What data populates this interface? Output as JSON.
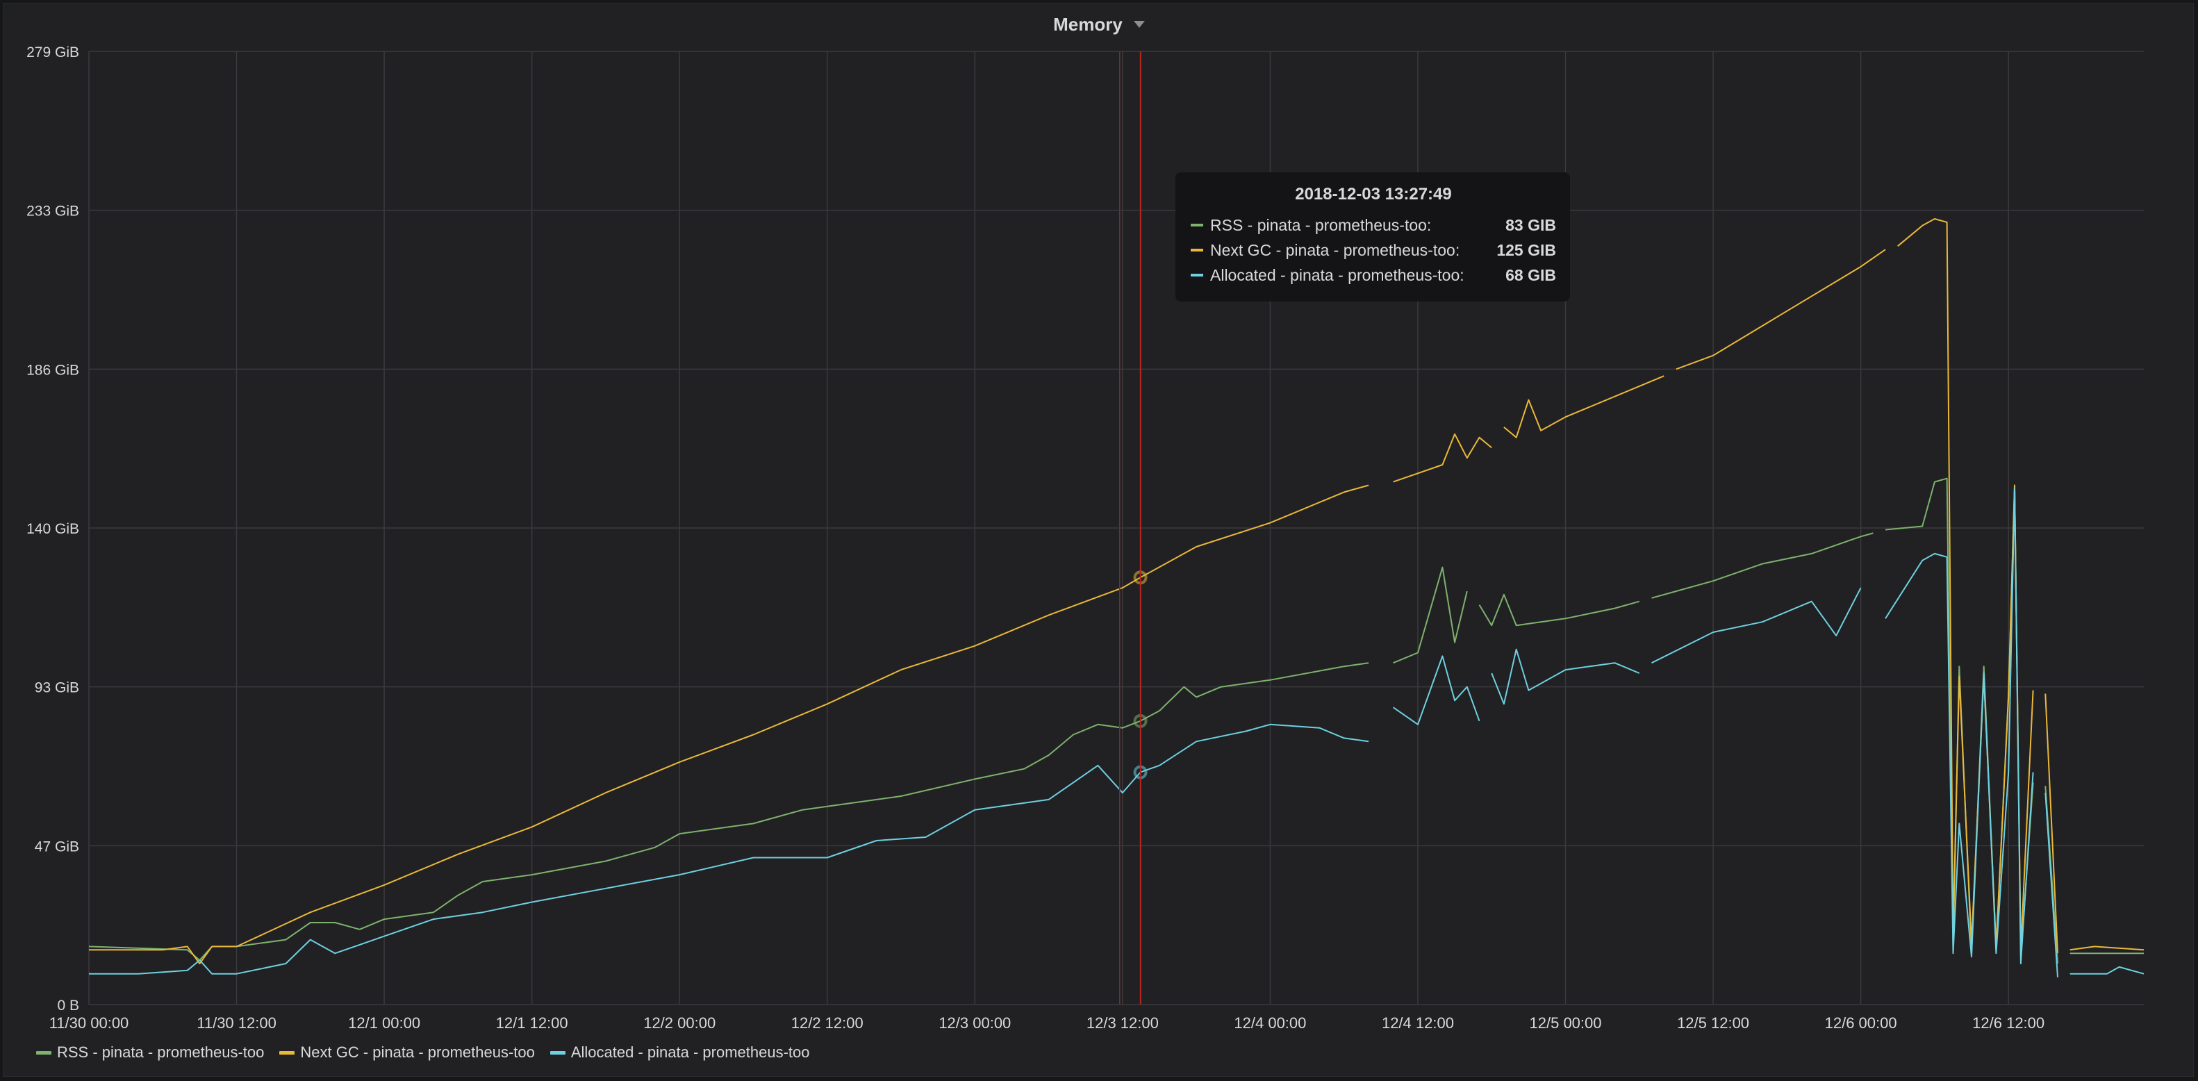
{
  "panel": {
    "title": "Memory"
  },
  "colors": {
    "rss": "#7eb26d",
    "next_gc": "#eab839",
    "allocated": "#6ed0e0",
    "cursor": "#b8251f",
    "grid": "#3a3a3e",
    "text": "#d8d9da"
  },
  "tooltip": {
    "time": "2018-12-03 13:27:49",
    "rows": [
      {
        "name": "RSS - pinata - prometheus-too:",
        "value": "83 GIB",
        "color": "#7eb26d"
      },
      {
        "name": "Next GC - pinata - prometheus-too:",
        "value": "125 GIB",
        "color": "#eab839"
      },
      {
        "name": "Allocated - pinata - prometheus-too:",
        "value": "68 GIB",
        "color": "#6ed0e0"
      }
    ]
  },
  "chart_data": {
    "type": "line",
    "grid": true,
    "legend_position": "bottom-left",
    "xlim": [
      "2018-11-30 00:00",
      "2018-12-06 23:00"
    ],
    "ylim": [
      0,
      279
    ],
    "y_unit": "GiB",
    "y_ticks": [
      {
        "value": 0,
        "label": "0 B"
      },
      {
        "value": 46.5,
        "label": "47 GiB"
      },
      {
        "value": 93,
        "label": "93 GiB"
      },
      {
        "value": 139.5,
        "label": "140 GiB"
      },
      {
        "value": 186,
        "label": "186 GiB"
      },
      {
        "value": 232.5,
        "label": "233 GiB"
      },
      {
        "value": 279,
        "label": "279 GiB"
      }
    ],
    "x_ticks": [
      {
        "value": "2018-11-30 00:00",
        "label": "11/30 00:00"
      },
      {
        "value": "2018-11-30 12:00",
        "label": "11/30 12:00"
      },
      {
        "value": "2018-12-01 00:00",
        "label": "12/1 00:00"
      },
      {
        "value": "2018-12-01 12:00",
        "label": "12/1 12:00"
      },
      {
        "value": "2018-12-02 00:00",
        "label": "12/2 00:00"
      },
      {
        "value": "2018-12-02 12:00",
        "label": "12/2 12:00"
      },
      {
        "value": "2018-12-03 00:00",
        "label": "12/3 00:00"
      },
      {
        "value": "2018-12-03 12:00",
        "label": "12/3 12:00"
      },
      {
        "value": "2018-12-04 00:00",
        "label": "12/4 00:00"
      },
      {
        "value": "2018-12-04 12:00",
        "label": "12/4 12:00"
      },
      {
        "value": "2018-12-05 00:00",
        "label": "12/5 00:00"
      },
      {
        "value": "2018-12-05 12:00",
        "label": "12/5 12:00"
      },
      {
        "value": "2018-12-06 00:00",
        "label": "12/6 00:00"
      },
      {
        "value": "2018-12-06 12:00",
        "label": "12/6 12:00"
      }
    ],
    "cursor": {
      "x": "2018-12-03 13:27:49"
    },
    "series": [
      {
        "name": "RSS - pinata - prometheus-too",
        "color": "#7eb26d",
        "segments": [
          [
            [
              "2018-11-30 00:00",
              17
            ],
            [
              "2018-11-30 08:00",
              16
            ],
            [
              "2018-11-30 09:00",
              13
            ],
            [
              "2018-11-30 10:00",
              17
            ],
            [
              "2018-11-30 12:00",
              17
            ],
            [
              "2018-11-30 16:00",
              19
            ],
            [
              "2018-11-30 18:00",
              24
            ],
            [
              "2018-11-30 20:00",
              24
            ],
            [
              "2018-11-30 22:00",
              22
            ],
            [
              "2018-12-01 00:00",
              25
            ],
            [
              "2018-12-01 04:00",
              27
            ],
            [
              "2018-12-01 06:00",
              32
            ],
            [
              "2018-12-01 08:00",
              36
            ],
            [
              "2018-12-01 12:00",
              38
            ],
            [
              "2018-12-01 18:00",
              42
            ],
            [
              "2018-12-01 22:00",
              46
            ],
            [
              "2018-12-02 00:00",
              50
            ],
            [
              "2018-12-02 06:00",
              53
            ],
            [
              "2018-12-02 10:00",
              57
            ],
            [
              "2018-12-02 12:00",
              58
            ],
            [
              "2018-12-02 18:00",
              61
            ],
            [
              "2018-12-03 00:00",
              66
            ],
            [
              "2018-12-03 04:00",
              69
            ],
            [
              "2018-12-03 06:00",
              73
            ],
            [
              "2018-12-03 08:00",
              79
            ],
            [
              "2018-12-03 10:00",
              82
            ],
            [
              "2018-12-03 12:00",
              81
            ],
            [
              "2018-12-03 13:27",
              83
            ],
            [
              "2018-12-03 15:00",
              86
            ],
            [
              "2018-12-03 17:00",
              93
            ],
            [
              "2018-12-03 18:00",
              90
            ],
            [
              "2018-12-03 20:00",
              93
            ],
            [
              "2018-12-04 00:00",
              95
            ],
            [
              "2018-12-04 06:00",
              99
            ],
            [
              "2018-12-04 08:00",
              100
            ]
          ],
          [
            [
              "2018-12-04 10:00",
              100
            ],
            [
              "2018-12-04 12:00",
              103
            ],
            [
              "2018-12-04 14:00",
              128
            ],
            [
              "2018-12-04 15:00",
              106
            ],
            [
              "2018-12-04 16:00",
              121
            ]
          ],
          [
            [
              "2018-12-04 17:00",
              117
            ],
            [
              "2018-12-04 18:00",
              111
            ],
            [
              "2018-12-04 19:00",
              120
            ],
            [
              "2018-12-04 20:00",
              111
            ],
            [
              "2018-12-05 00:00",
              113
            ],
            [
              "2018-12-05 04:00",
              116
            ],
            [
              "2018-12-05 06:00",
              118
            ]
          ],
          [
            [
              "2018-12-05 07:00",
              119
            ],
            [
              "2018-12-05 12:00",
              124
            ],
            [
              "2018-12-05 16:00",
              129
            ],
            [
              "2018-12-05 20:00",
              132
            ],
            [
              "2018-12-06 00:00",
              137
            ],
            [
              "2018-12-06 01:00",
              138
            ]
          ],
          [
            [
              "2018-12-06 02:00",
              139
            ],
            [
              "2018-12-06 05:00",
              140
            ],
            [
              "2018-12-06 06:00",
              153
            ],
            [
              "2018-12-06 07:00",
              154
            ],
            [
              "2018-12-06 07:30",
              17
            ],
            [
              "2018-12-06 08:00",
              99
            ],
            [
              "2018-12-06 09:00",
              15
            ],
            [
              "2018-12-06 10:00",
              99
            ],
            [
              "2018-12-06 11:00",
              16
            ],
            [
              "2018-12-06 12:00",
              91
            ],
            [
              "2018-12-06 12:30",
              152
            ],
            [
              "2018-12-06 13:00",
              14
            ],
            [
              "2018-12-06 14:00",
              65
            ]
          ],
          [
            [
              "2018-12-06 15:00",
              64
            ],
            [
              "2018-12-06 16:00",
              12
            ]
          ],
          [
            [
              "2018-12-06 17:00",
              15
            ],
            [
              "2018-12-06 19:00",
              15
            ],
            [
              "2018-12-06 23:00",
              15
            ]
          ]
        ]
      },
      {
        "name": "Next GC - pinata - prometheus-too",
        "color": "#eab839",
        "segments": [
          [
            [
              "2018-11-30 00:00",
              16
            ],
            [
              "2018-11-30 06:00",
              16
            ],
            [
              "2018-11-30 08:00",
              17
            ],
            [
              "2018-11-30 09:00",
              12
            ],
            [
              "2018-11-30 10:00",
              17
            ],
            [
              "2018-11-30 12:00",
              17
            ],
            [
              "2018-11-30 18:00",
              27
            ],
            [
              "2018-12-01 00:00",
              35
            ],
            [
              "2018-12-01 06:00",
              44
            ],
            [
              "2018-12-01 12:00",
              52
            ],
            [
              "2018-12-01 18:00",
              62
            ],
            [
              "2018-12-02 00:00",
              71
            ],
            [
              "2018-12-02 06:00",
              79
            ],
            [
              "2018-12-02 12:00",
              88
            ],
            [
              "2018-12-02 18:00",
              98
            ],
            [
              "2018-12-03 00:00",
              105
            ],
            [
              "2018-12-03 06:00",
              114
            ],
            [
              "2018-12-03 12:00",
              122
            ],
            [
              "2018-12-03 13:27",
              125
            ],
            [
              "2018-12-03 18:00",
              134
            ],
            [
              "2018-12-04 00:00",
              141
            ],
            [
              "2018-12-04 06:00",
              150
            ],
            [
              "2018-12-04 08:00",
              152
            ]
          ],
          [
            [
              "2018-12-04 10:00",
              153
            ],
            [
              "2018-12-04 14:00",
              158
            ],
            [
              "2018-12-04 15:00",
              167
            ],
            [
              "2018-12-04 16:00",
              160
            ],
            [
              "2018-12-04 17:00",
              166
            ],
            [
              "2018-12-04 18:00",
              163
            ]
          ],
          [
            [
              "2018-12-04 19:00",
              169
            ],
            [
              "2018-12-04 20:00",
              166
            ],
            [
              "2018-12-04 21:00",
              177
            ],
            [
              "2018-12-04 22:00",
              168
            ],
            [
              "2018-12-05 00:00",
              172
            ],
            [
              "2018-12-05 06:00",
              181
            ],
            [
              "2018-12-05 08:00",
              184
            ]
          ],
          [
            [
              "2018-12-05 09:00",
              186
            ],
            [
              "2018-12-05 12:00",
              190
            ],
            [
              "2018-12-05 18:00",
              203
            ],
            [
              "2018-12-06 00:00",
              216
            ],
            [
              "2018-12-06 02:00",
              221
            ]
          ],
          [
            [
              "2018-12-06 03:00",
              222
            ],
            [
              "2018-12-06 05:00",
              228
            ],
            [
              "2018-12-06 06:00",
              230
            ],
            [
              "2018-12-06 07:00",
              229
            ],
            [
              "2018-12-06 07:30",
              21
            ],
            [
              "2018-12-06 08:00",
              96
            ],
            [
              "2018-12-06 09:00",
              18
            ],
            [
              "2018-12-06 10:00",
              96
            ],
            [
              "2018-12-06 11:00",
              17
            ],
            [
              "2018-12-06 12:00",
              90
            ],
            [
              "2018-12-06 12:30",
              152
            ],
            [
              "2018-12-06 13:00",
              16
            ],
            [
              "2018-12-06 14:00",
              92
            ]
          ],
          [
            [
              "2018-12-06 15:00",
              91
            ],
            [
              "2018-12-06 16:00",
              15
            ]
          ],
          [
            [
              "2018-12-06 17:00",
              16
            ],
            [
              "2018-12-06 19:00",
              17
            ],
            [
              "2018-12-06 23:00",
              16
            ]
          ]
        ]
      },
      {
        "name": "Allocated - pinata - prometheus-too",
        "color": "#6ed0e0",
        "segments": [
          [
            [
              "2018-11-30 00:00",
              9
            ],
            [
              "2018-11-30 04:00",
              9
            ],
            [
              "2018-11-30 08:00",
              10
            ],
            [
              "2018-11-30 09:00",
              13
            ],
            [
              "2018-11-30 10:00",
              9
            ],
            [
              "2018-11-30 12:00",
              9
            ],
            [
              "2018-11-30 16:00",
              12
            ],
            [
              "2018-11-30 18:00",
              19
            ],
            [
              "2018-11-30 20:00",
              15
            ],
            [
              "2018-12-01 00:00",
              20
            ],
            [
              "2018-12-01 04:00",
              25
            ],
            [
              "2018-12-01 08:00",
              27
            ],
            [
              "2018-12-01 12:00",
              30
            ],
            [
              "2018-12-01 18:00",
              34
            ],
            [
              "2018-12-02 00:00",
              38
            ],
            [
              "2018-12-02 06:00",
              43
            ],
            [
              "2018-12-02 12:00",
              43
            ],
            [
              "2018-12-02 16:00",
              48
            ],
            [
              "2018-12-02 20:00",
              49
            ],
            [
              "2018-12-03 00:00",
              57
            ],
            [
              "2018-12-03 06:00",
              60
            ],
            [
              "2018-12-03 08:00",
              65
            ],
            [
              "2018-12-03 10:00",
              70
            ],
            [
              "2018-12-03 12:00",
              62
            ],
            [
              "2018-12-03 13:27",
              68
            ],
            [
              "2018-12-03 15:00",
              70
            ],
            [
              "2018-12-03 18:00",
              77
            ],
            [
              "2018-12-03 22:00",
              80
            ],
            [
              "2018-12-04 00:00",
              82
            ],
            [
              "2018-12-04 04:00",
              81
            ],
            [
              "2018-12-04 06:00",
              78
            ],
            [
              "2018-12-04 08:00",
              77
            ]
          ],
          [
            [
              "2018-12-04 10:00",
              87
            ],
            [
              "2018-12-04 12:00",
              82
            ],
            [
              "2018-12-04 14:00",
              102
            ],
            [
              "2018-12-04 15:00",
              89
            ],
            [
              "2018-12-04 16:00",
              93
            ],
            [
              "2018-12-04 17:00",
              83
            ]
          ],
          [
            [
              "2018-12-04 18:00",
              97
            ],
            [
              "2018-12-04 19:00",
              88
            ],
            [
              "2018-12-04 20:00",
              104
            ],
            [
              "2018-12-04 21:00",
              92
            ],
            [
              "2018-12-05 00:00",
              98
            ],
            [
              "2018-12-05 04:00",
              100
            ],
            [
              "2018-12-05 06:00",
              97
            ]
          ],
          [
            [
              "2018-12-05 07:00",
              100
            ],
            [
              "2018-12-05 12:00",
              109
            ],
            [
              "2018-12-05 16:00",
              112
            ],
            [
              "2018-12-05 20:00",
              118
            ],
            [
              "2018-12-05 22:00",
              108
            ],
            [
              "2018-12-06 00:00",
              122
            ]
          ],
          [
            [
              "2018-12-06 02:00",
              113
            ],
            [
              "2018-12-06 05:00",
              130
            ],
            [
              "2018-12-06 06:00",
              132
            ],
            [
              "2018-12-06 07:00",
              131
            ],
            [
              "2018-12-06 07:30",
              15
            ],
            [
              "2018-12-06 08:00",
              53
            ],
            [
              "2018-12-06 09:00",
              14
            ],
            [
              "2018-12-06 10:00",
              97
            ],
            [
              "2018-12-06 11:00",
              15
            ],
            [
              "2018-12-06 12:00",
              68
            ],
            [
              "2018-12-06 12:30",
              151
            ],
            [
              "2018-12-06 13:00",
              12
            ],
            [
              "2018-12-06 14:00",
              68
            ]
          ],
          [
            [
              "2018-12-06 15:00",
              62
            ],
            [
              "2018-12-06 16:00",
              8
            ]
          ],
          [
            [
              "2018-12-06 17:00",
              9
            ],
            [
              "2018-12-06 20:00",
              9
            ],
            [
              "2018-12-06 21:00",
              11
            ],
            [
              "2018-12-06 23:00",
              9
            ]
          ]
        ]
      }
    ]
  }
}
